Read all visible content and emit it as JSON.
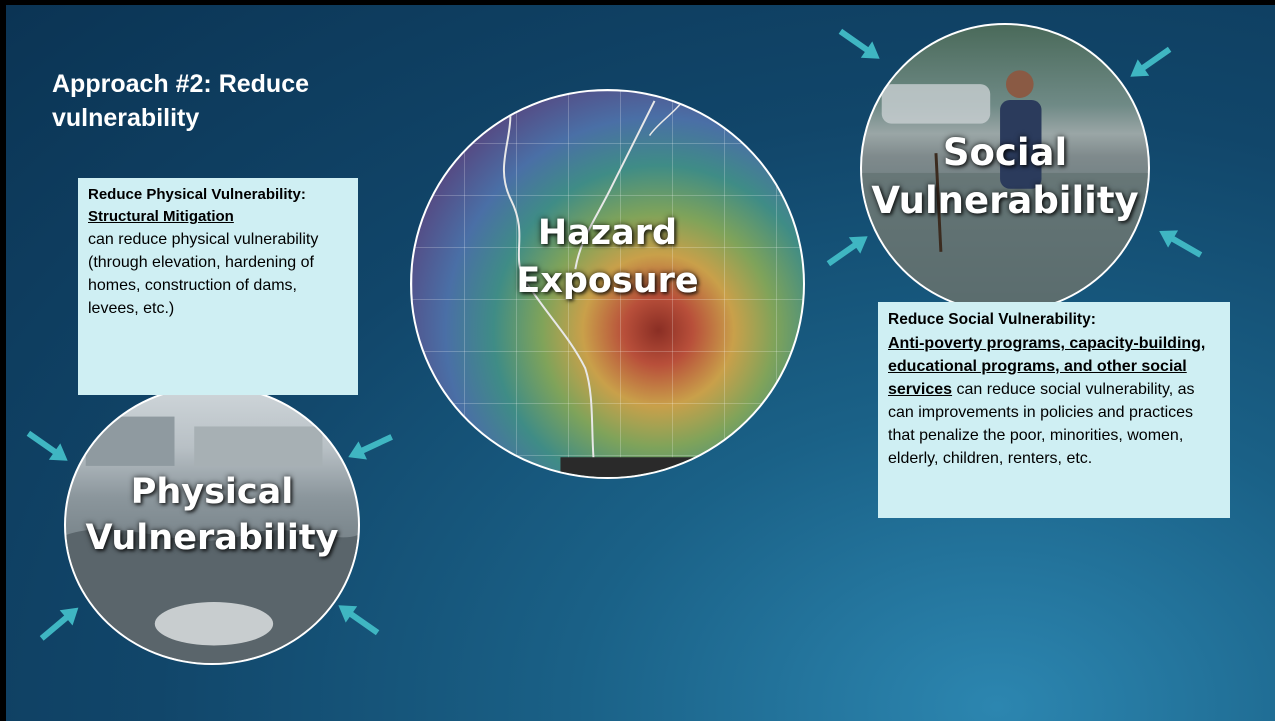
{
  "slide": {
    "title": "Approach #2: Reduce vulnerability"
  },
  "circles": {
    "hazard": {
      "label_line1": "Hazard",
      "label_line2": "Exposure"
    },
    "social": {
      "label_line1": "Social",
      "label_line2": "Vulnerability"
    },
    "physical": {
      "label_line1": "Physical",
      "label_line2": "Vulnerability"
    }
  },
  "boxes": {
    "physical": {
      "heading": "Reduce Physical Vulnerability:",
      "emphasis": "Structural Mitigation",
      "body": "can reduce physical vulnerability (through elevation, hardening of homes, construction of dams, levees, etc.)"
    },
    "social": {
      "heading": "Reduce Social Vulnerability:",
      "emphasis": "Anti-poverty programs, capacity-building, educational programs, and other social services",
      "body": " can reduce social vulnerability, as can improvements in policies and practices that penalize the poor, minorities, women, elderly, children, renters, etc."
    }
  },
  "colors": {
    "background": "#11466a",
    "arrow": "#3fb6c2",
    "textbox": "#cfeff3",
    "title_text": "#ffffff"
  },
  "icons": [
    "arrow-icon"
  ]
}
